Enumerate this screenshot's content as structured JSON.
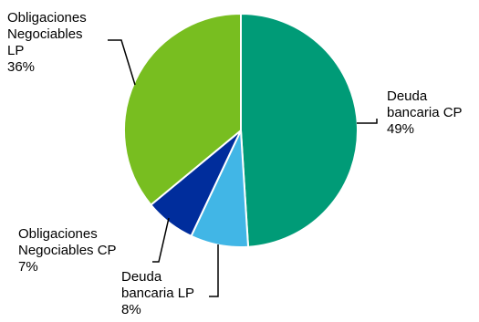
{
  "chart_data": {
    "type": "pie",
    "title": "",
    "slices": [
      {
        "label_lines": [
          "Deuda",
          "bancaria CP"
        ],
        "percent_label": "49%",
        "value": 49,
        "color": "#009B77"
      },
      {
        "label_lines": [
          "Deuda",
          "bancaria LP"
        ],
        "percent_label": "8%",
        "value": 8,
        "color": "#41B6E6"
      },
      {
        "label_lines": [
          "Obligaciones",
          "Negociables CP"
        ],
        "percent_label": "7%",
        "value": 7,
        "color": "#002D9C"
      },
      {
        "label_lines": [
          "Obligaciones",
          "Negociables",
          "LP"
        ],
        "percent_label": "36%",
        "value": 36,
        "color": "#78BE20"
      }
    ],
    "start_angle_deg": 0,
    "direction": "clockwise",
    "legend": "none",
    "label_placement": "outside-with-leader-lines"
  }
}
